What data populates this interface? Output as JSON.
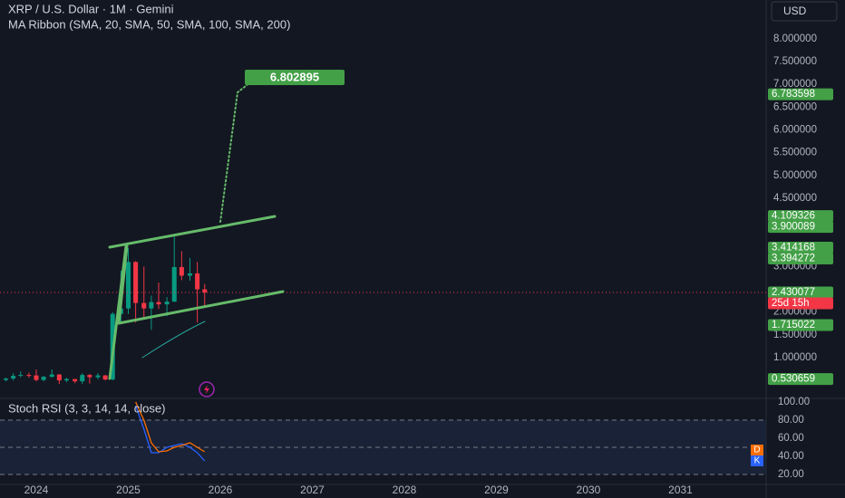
{
  "chart_data": [
    {
      "type": "candlestick",
      "title": "XRP / U.S. Dollar · 1M · Gemini",
      "subtitle": "MA Ribbon (SMA, 20, SMA, 50, SMA, 100, SMA, 200)",
      "currency": "USD",
      "x": [
        2023.67,
        2023.75,
        2023.83,
        2023.92,
        2024.0,
        2024.08,
        2024.17,
        2024.25,
        2024.33,
        2024.42,
        2024.5,
        2024.58,
        2024.67,
        2024.75,
        2024.83,
        2024.92,
        2025.0,
        2025.08,
        2025.17,
        2025.25,
        2025.33,
        2025.42,
        2025.5,
        2025.58,
        2025.67,
        2025.75,
        2025.83
      ],
      "open": [
        0.51,
        0.54,
        0.6,
        0.62,
        0.61,
        0.51,
        0.58,
        0.63,
        0.5,
        0.53,
        0.48,
        0.62,
        0.57,
        0.61,
        0.52,
        1.96,
        2.08,
        3.1,
        2.2,
        2.08,
        2.22,
        2.17,
        2.23,
        2.99,
        2.8,
        2.85,
        2.5
      ],
      "high": [
        0.56,
        0.66,
        0.7,
        0.67,
        0.74,
        0.6,
        0.74,
        0.64,
        0.56,
        0.53,
        0.66,
        0.64,
        0.66,
        0.62,
        2.0,
        2.91,
        3.4,
        3.12,
        3.0,
        2.36,
        2.65,
        2.33,
        3.66,
        3.34,
        3.19,
        3.1,
        2.62
      ],
      "low": [
        0.48,
        0.5,
        0.57,
        0.56,
        0.48,
        0.48,
        0.56,
        0.42,
        0.46,
        0.44,
        0.42,
        0.43,
        0.52,
        0.5,
        0.5,
        1.77,
        1.96,
        1.77,
        1.88,
        1.61,
        2.07,
        1.91,
        2.22,
        2.7,
        2.69,
        1.77,
        2.1
      ],
      "close": [
        0.54,
        0.6,
        0.62,
        0.61,
        0.51,
        0.58,
        0.63,
        0.5,
        0.53,
        0.48,
        0.62,
        0.57,
        0.61,
        0.52,
        1.96,
        2.08,
        3.1,
        2.2,
        2.08,
        2.22,
        2.17,
        2.23,
        2.99,
        2.8,
        2.85,
        2.5,
        2.43
      ],
      "up_color": "#089981",
      "down_color": "#f23645",
      "xlim": [
        2023.606,
        2031.931
      ],
      "xticks": [
        2024,
        2025,
        2026,
        2027,
        2028,
        2029,
        2030,
        2031
      ],
      "ylim": [
        0.105,
        8.853
      ],
      "yticks": [
        {
          "value": 8,
          "label": "8.000000"
        },
        {
          "value": 7.5,
          "label": "7.500000"
        },
        {
          "value": 7,
          "label": "7.000000"
        },
        {
          "value": 6.5,
          "label": "6.500000"
        },
        {
          "value": 6,
          "label": "6.000000"
        },
        {
          "value": 5.5,
          "label": "5.500000"
        },
        {
          "value": 5,
          "label": "5.000000"
        },
        {
          "value": 4.5,
          "label": "4.500000"
        },
        {
          "value": 3,
          "label": "3.000000"
        },
        {
          "value": 2,
          "label": "2.000000"
        },
        {
          "value": 1.5,
          "label": "1.500000"
        },
        {
          "value": 1,
          "label": "1.000000"
        }
      ],
      "price_labels": [
        {
          "value": 6.783598,
          "color": "#43a047"
        },
        {
          "value": 4.109326,
          "color": "#43a047"
        },
        {
          "value": 3.900089,
          "color": "#43a047"
        },
        {
          "value": 3.414168,
          "color": "#43a047"
        },
        {
          "value": 3.394272,
          "color": "#43a047"
        },
        {
          "value": 2.430077,
          "color": "#43a047"
        },
        {
          "label": "25d 15h",
          "color": "#f23645"
        },
        {
          "value": 1.715022,
          "color": "#43a047"
        },
        {
          "value": 0.530659,
          "color": "#43a047"
        }
      ],
      "target_label": 6.802895
    },
    {
      "type": "line",
      "title": "Stoch RSI (3, 3, 14, 14, close)",
      "x": [
        2025.08,
        2025.17,
        2025.25,
        2025.33,
        2025.42,
        2025.5,
        2025.58,
        2025.67,
        2025.75,
        2025.83
      ],
      "series": [
        {
          "name": "K",
          "color": "#2962ff",
          "values": [
            96,
            70,
            44,
            44,
            50,
            52,
            54,
            50,
            44,
            35
          ]
        },
        {
          "name": "D",
          "color": "#ff6d00",
          "values": [
            100,
            80,
            55,
            45,
            46,
            50,
            52,
            55,
            50,
            45
          ]
        }
      ],
      "xlim": [
        2023.606,
        2031.931
      ],
      "ylim": [
        9,
        104
      ],
      "yticks": [
        {
          "value": 100,
          "label": "100.00"
        },
        {
          "value": 80,
          "label": "80.00"
        },
        {
          "value": 60,
          "label": "60.00"
        },
        {
          "value": 40,
          "label": "40.00"
        },
        {
          "value": 20,
          "label": "20.00"
        }
      ],
      "levels": [
        80,
        50,
        20
      ]
    }
  ]
}
